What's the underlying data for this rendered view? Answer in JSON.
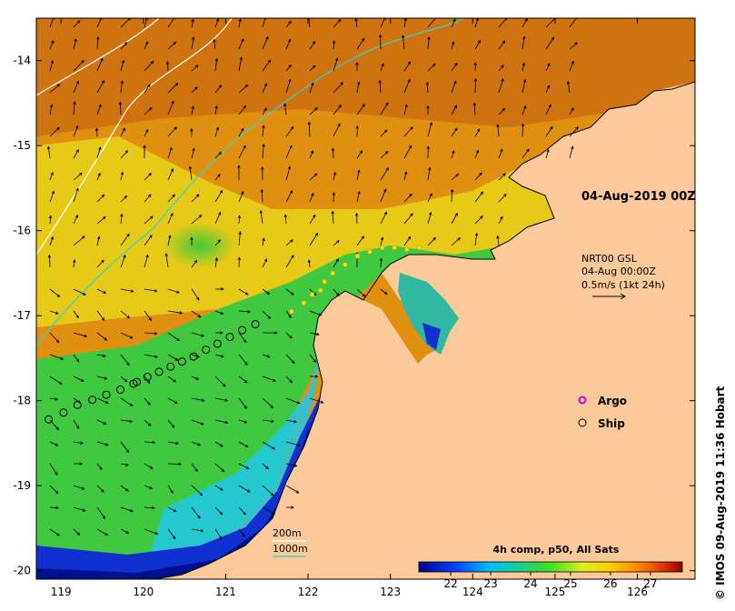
{
  "map": {
    "date_label": "04-Aug-2019 00Z",
    "current_info": {
      "line1": "NRT00 GSL",
      "line2": "04-Aug 00:00Z",
      "line3": "0.5m/s (1kt 24h)"
    },
    "legend": {
      "argo_label": "Argo",
      "ship_label": "Ship",
      "argo_color": "#cc00cc",
      "ship_color": "#000000"
    },
    "isobaths": {
      "label_200m": "200m",
      "label_1000m": "1000m",
      "color_200m": "#ffffff",
      "color_1000m": "#40d0c0"
    },
    "colorbar": {
      "title": "4h comp, p50, All Sats",
      "ticks": [
        "22",
        "23",
        "24",
        "25",
        "26",
        "27"
      ],
      "vmin": 21.2,
      "vmax": 27.8
    },
    "credit": "© IMOS 09-Aug-2019 11:36 Hobart",
    "axes": {
      "x_ticks": [
        "119",
        "120",
        "121",
        "122",
        "123",
        "124",
        "125",
        "126"
      ],
      "y_ticks": [
        "-14",
        "-15",
        "-16",
        "-17",
        "-18",
        "-19",
        "-20"
      ],
      "lon_range": [
        118.7,
        126.7
      ],
      "lat_range": [
        -20.1,
        -13.5
      ]
    },
    "land_color": "#fbc99a",
    "ship_track": [
      [
        118.85,
        -18.22
      ],
      [
        119.03,
        -18.14
      ],
      [
        119.2,
        -18.05
      ],
      [
        119.38,
        -17.99
      ],
      [
        119.55,
        -17.93
      ],
      [
        119.72,
        -17.87
      ],
      [
        119.88,
        -17.8
      ],
      [
        119.92,
        -17.78
      ],
      [
        120.05,
        -17.72
      ],
      [
        120.19,
        -17.66
      ],
      [
        120.33,
        -17.6
      ],
      [
        120.47,
        -17.54
      ],
      [
        120.61,
        -17.48
      ],
      [
        120.76,
        -17.4
      ],
      [
        120.9,
        -17.33
      ],
      [
        121.05,
        -17.25
      ],
      [
        121.2,
        -17.17
      ],
      [
        121.36,
        -17.1
      ]
    ]
  }
}
